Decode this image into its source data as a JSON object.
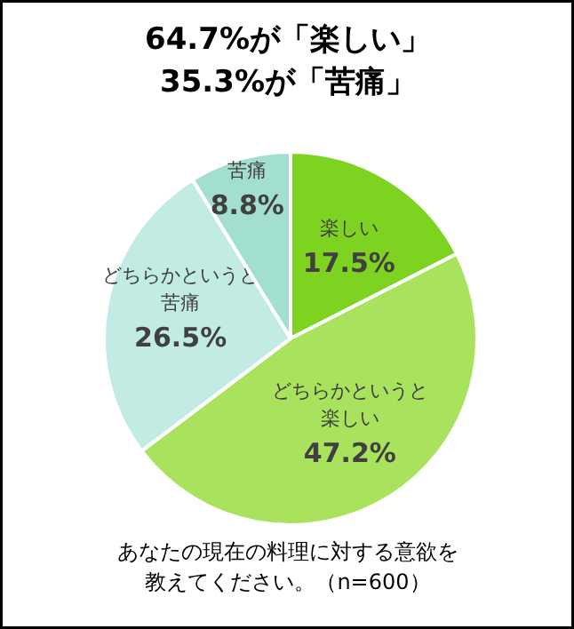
{
  "chart_data": {
    "type": "pie",
    "title": "64.7%が「楽しい」\n35.3%が「苦痛」",
    "categories": [
      "楽しい",
      "どちらかというと楽しい",
      "どちらかというと苦痛",
      "苦痛"
    ],
    "values": [
      17.5,
      47.2,
      26.5,
      8.8
    ],
    "colors": [
      "#7ed321",
      "#a9e25c",
      "#c2ebe3",
      "#a3dfd0"
    ],
    "value_labels": [
      "17.5%",
      "47.2%",
      "26.5%",
      "8.8%"
    ],
    "annotations": [
      "あなたの現在の料理に対する意欲を教えてください。（n=600）"
    ]
  }
}
